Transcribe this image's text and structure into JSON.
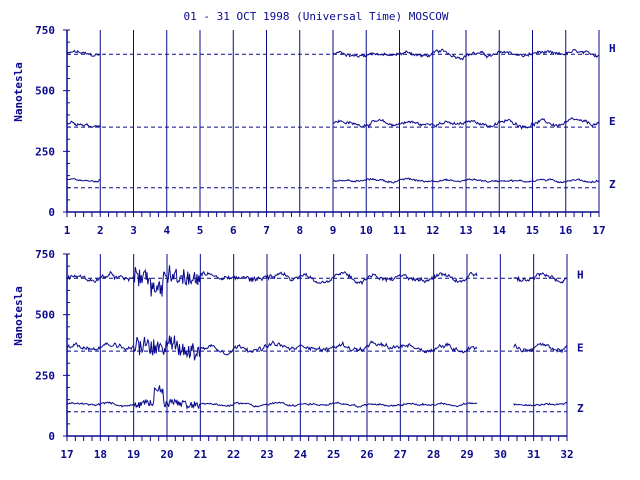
{
  "title": "01 - 31 OCT 1998 (Universal Time) MOSCOW",
  "ylabel": "Nanotesla",
  "colors": {
    "ink": "#0a0a8c",
    "background": "#ffffff"
  },
  "chart_data": [
    {
      "type": "line",
      "xlim": [
        1,
        17
      ],
      "x_ticks": [
        "1",
        "2",
        "3",
        "4",
        "5",
        "6",
        "7",
        "8",
        "9",
        "10",
        "11",
        "12",
        "13",
        "14",
        "15",
        "16",
        "17"
      ],
      "ylim": [
        0,
        750
      ],
      "y_ticks": [
        "0",
        "250",
        "500",
        "750"
      ],
      "reference_lines": [
        650,
        350,
        100
      ],
      "series": [
        {
          "name": "H",
          "baseline": 650,
          "amplitude": 14,
          "spike": 0,
          "segments": [
            [
              1.0,
              2.0
            ],
            [
              9.0,
              17.0
            ]
          ],
          "label_y": 675
        },
        {
          "name": "E",
          "baseline": 365,
          "amplitude": 14,
          "spike": 0,
          "segments": [
            [
              1.0,
              2.0
            ],
            [
              9.0,
              17.0
            ]
          ],
          "label_y": 375
        },
        {
          "name": "Z",
          "baseline": 130,
          "amplitude": 8,
          "spike": 0,
          "segments": [
            [
              1.0,
              2.0
            ],
            [
              9.0,
              17.0
            ]
          ],
          "label_y": 115
        }
      ]
    },
    {
      "type": "line",
      "xlim": [
        17,
        32
      ],
      "x_ticks": [
        "17",
        "18",
        "19",
        "20",
        "21",
        "22",
        "23",
        "24",
        "25",
        "26",
        "27",
        "28",
        "29",
        "30",
        "31",
        "32"
      ],
      "ylim": [
        0,
        750
      ],
      "y_ticks": [
        "0",
        "250",
        "500",
        "750"
      ],
      "reference_lines": [
        650,
        350,
        100
      ],
      "series": [
        {
          "name": "H",
          "baseline": 650,
          "amplitude": 18,
          "spike": 1,
          "segments": [
            [
              17.0,
              29.3
            ],
            [
              30.4,
              32.0
            ]
          ],
          "label_y": 665
        },
        {
          "name": "E",
          "baseline": 365,
          "amplitude": 18,
          "spike": 1,
          "segments": [
            [
              17.0,
              29.3
            ],
            [
              30.4,
              32.0
            ]
          ],
          "label_y": 365
        },
        {
          "name": "Z",
          "baseline": 130,
          "amplitude": 8,
          "spike": 1,
          "segments": [
            [
              17.0,
              29.3
            ],
            [
              30.4,
              32.0
            ]
          ],
          "label_y": 115
        }
      ]
    }
  ]
}
